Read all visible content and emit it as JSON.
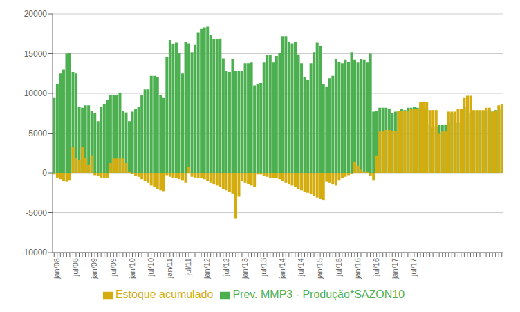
{
  "chart_data": {
    "type": "bar",
    "categories": [
      "jan/08",
      null,
      null,
      null,
      null,
      null,
      "jul/08",
      null,
      null,
      null,
      null,
      null,
      "jan/09",
      null,
      null,
      null,
      null,
      null,
      "jul/09",
      null,
      null,
      null,
      null,
      null,
      "jan/10",
      null,
      null,
      null,
      null,
      null,
      "jul/10",
      null,
      null,
      null,
      null,
      null,
      "jan/11",
      null,
      null,
      null,
      null,
      null,
      "jul/11",
      null,
      null,
      null,
      null,
      null,
      "jan/12",
      null,
      null,
      null,
      null,
      null,
      "jul/12",
      null,
      null,
      null,
      null,
      null,
      "jan/13",
      null,
      null,
      null,
      null,
      null,
      "jul/13",
      null,
      null,
      null,
      null,
      null,
      "jan/14",
      null,
      null,
      null,
      null,
      null,
      "jul/14",
      null,
      null,
      null,
      null,
      null,
      "jan/15",
      null,
      null,
      null,
      null,
      null,
      "jul/15",
      null,
      null,
      null,
      null,
      null,
      "jan/16",
      null,
      null,
      null,
      null,
      null,
      "jul/16",
      null,
      null,
      null,
      null,
      null,
      "jan/17",
      null,
      null,
      null,
      null,
      null,
      "jul/17",
      null,
      null,
      null,
      null,
      null,
      null,
      null,
      null,
      null,
      null,
      null,
      null,
      null,
      null,
      null,
      null,
      null,
      null,
      null,
      null,
      null,
      null,
      null,
      null,
      null,
      null,
      null,
      null,
      null
    ],
    "series": [
      {
        "name": "Prev. MMP3 - Produção*SAZON10",
        "color": "#4CAF50",
        "values": [
          9500,
          11200,
          12500,
          13000,
          15000,
          15100,
          12700,
          12500,
          8300,
          8200,
          8500,
          8500,
          7800,
          7500,
          6500,
          8300,
          8700,
          9200,
          9800,
          9800,
          9800,
          10100,
          7800,
          7600,
          6500,
          7700,
          8000,
          8300,
          9800,
          10500,
          10500,
          12200,
          12200,
          12000,
          9800,
          9500,
          14600,
          16700,
          16200,
          16400,
          15100,
          12500,
          16500,
          16300,
          15200,
          16100,
          17700,
          18100,
          18300,
          18400,
          17300,
          16800,
          16800,
          16900,
          14400,
          12800,
          12700,
          14300,
          12800,
          12800,
          12800,
          13800,
          13800,
          13900,
          11000,
          11200,
          11300,
          13900,
          14800,
          14800,
          13900,
          14700,
          15100,
          17200,
          17200,
          16500,
          16300,
          16500,
          14900,
          13800,
          12000,
          11700,
          13800,
          15200,
          16400,
          16000,
          11200,
          10800,
          11900,
          12200,
          14300,
          14000,
          13800,
          14200,
          14000,
          15200,
          14200,
          13900,
          14300,
          14200,
          13900,
          15000,
          7700,
          7800,
          8200,
          8200,
          8200,
          8100,
          7500,
          7700,
          7800,
          8000,
          7900,
          8200,
          8200,
          8300,
          8200,
          8200,
          8300,
          8000,
          6000,
          5700,
          5900,
          6000,
          6000,
          6100,
          6300,
          7500,
          6400,
          6300,
          7500,
          8300,
          7600,
          7600,
          7800,
          7800,
          7700,
          7800,
          7700,
          7900,
          7700,
          7900,
          7900,
          8000
        ]
      },
      {
        "name": "Estoque acumulado",
        "color": "#D4AC0D",
        "values": [
          -200,
          -600,
          -800,
          -1000,
          -1100,
          -900,
          3300,
          1900,
          1600,
          3300,
          1900,
          1000,
          2200,
          -300,
          -400,
          -600,
          -600,
          -600,
          1300,
          1800,
          1800,
          1800,
          1800,
          1300,
          200,
          -100,
          -400,
          -500,
          -800,
          -1000,
          -1200,
          -1600,
          -1800,
          -2000,
          -2200,
          -2300,
          -300,
          -500,
          -600,
          -700,
          -800,
          -900,
          -1200,
          700,
          -500,
          -600,
          -700,
          -700,
          -800,
          -1000,
          -1200,
          -1400,
          -1600,
          -1800,
          -2000,
          -2200,
          -2400,
          -2600,
          -5700,
          -3000,
          -1000,
          -1200,
          -1400,
          -1600,
          -1800,
          -200,
          -200,
          -400,
          -500,
          -600,
          -700,
          -700,
          -800,
          -1000,
          -1200,
          -1400,
          -1600,
          -1800,
          -2000,
          -2200,
          -2400,
          -2500,
          -2700,
          -2900,
          -3100,
          -3300,
          -3400,
          -1100,
          -1200,
          -1400,
          -1600,
          -900,
          -700,
          -500,
          -300,
          -100,
          1400,
          900,
          400,
          200,
          100,
          -400,
          -900,
          2200,
          5200,
          5200,
          5400,
          5400,
          5300,
          5300,
          7800,
          7800,
          7800,
          7800,
          8000,
          8000,
          8000,
          8900,
          8900,
          8900,
          7900,
          7900,
          7900,
          5000,
          5200,
          5200,
          7700,
          7700,
          7700,
          8000,
          8000,
          9500,
          9700,
          9700,
          7900,
          7900,
          7900,
          7900,
          8200,
          8200,
          7700,
          7800,
          8500,
          8700
        ]
      }
    ],
    "ylim": [
      -10000,
      20000
    ],
    "yticks": [
      -10000,
      -5000,
      0,
      5000,
      10000,
      15000,
      20000
    ],
    "grid": true,
    "legend": "bottom",
    "stacked": false
  }
}
